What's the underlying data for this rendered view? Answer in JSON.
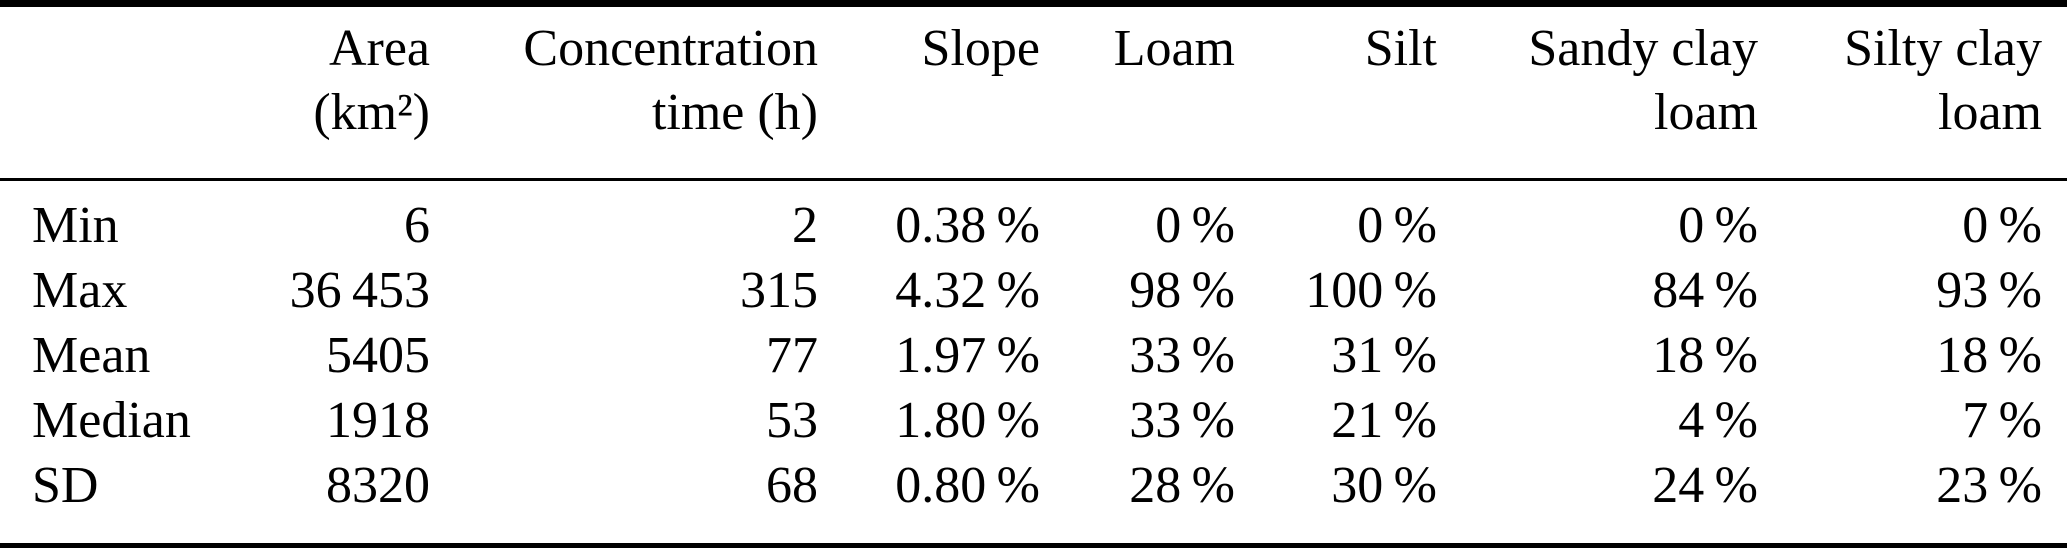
{
  "colors": {
    "background": "#ffffff",
    "text": "#000000",
    "rule": "#000000"
  },
  "table": {
    "headers": [
      {
        "id": "statistic",
        "line1": "",
        "line2": ""
      },
      {
        "id": "area",
        "line1": "Area",
        "line2": "(km²)"
      },
      {
        "id": "concentration-time",
        "line1": "Concentration",
        "line2": "time (h)"
      },
      {
        "id": "slope",
        "line1": "Slope",
        "line2": ""
      },
      {
        "id": "loam",
        "line1": "Loam",
        "line2": ""
      },
      {
        "id": "silt",
        "line1": "Silt",
        "line2": ""
      },
      {
        "id": "sandy-clay-loam",
        "line1": "Sandy clay",
        "line2": "loam"
      },
      {
        "id": "silty-clay-loam",
        "line1": "Silty clay",
        "line2": "loam"
      }
    ],
    "rows": [
      {
        "label": "Min",
        "values": [
          "6",
          "2",
          "0.38 %",
          "0 %",
          "0 %",
          "0 %",
          "0 %"
        ]
      },
      {
        "label": "Max",
        "values": [
          "36 453",
          "315",
          "4.32 %",
          "98 %",
          "100 %",
          "84 %",
          "93 %"
        ]
      },
      {
        "label": "Mean",
        "values": [
          "5405",
          "77",
          "1.97 %",
          "33 %",
          "31 %",
          "18 %",
          "18 %"
        ]
      },
      {
        "label": "Median",
        "values": [
          "1918",
          "53",
          "1.80 %",
          "33 %",
          "21 %",
          "4 %",
          "7 %"
        ]
      },
      {
        "label": "SD",
        "values": [
          "8320",
          "68",
          "0.80 %",
          "28 %",
          "30 %",
          "24 %",
          "23 %"
        ]
      }
    ]
  }
}
